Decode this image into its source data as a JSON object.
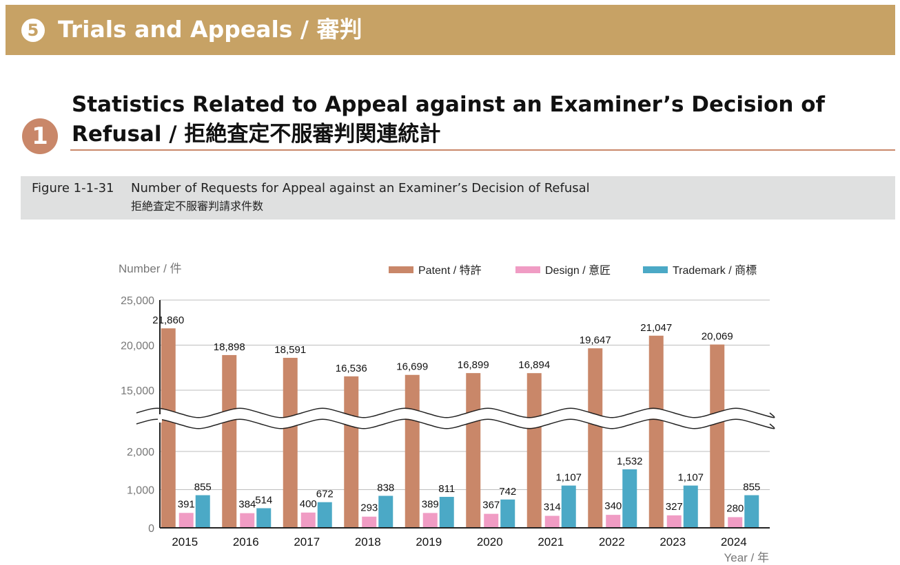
{
  "banner": {
    "number": "5",
    "title": "Trials and Appeals / 審判"
  },
  "section": {
    "number": "1",
    "title": "Statistics Related to Appeal against an Examiner’s Decision of Refusal / 拒絶査定不服審判関連統計"
  },
  "figure": {
    "label": "Figure 1-1-31",
    "title": "Number of Requests for Appeal against an Examiner’s Decision of Refusal",
    "subtitle": "拒絶査定不服審判請求件数"
  },
  "colors": {
    "banner": "#c7a265",
    "section_accent": "#c98769",
    "patent": "#c98769",
    "design": "#f09cc4",
    "trademark": "#4ba9c6"
  },
  "chart_data": {
    "type": "bar",
    "ylabel": "Number / 件",
    "xlabel": "Year / 年",
    "categories": [
      "2015",
      "2016",
      "2017",
      "2018",
      "2019",
      "2020",
      "2021",
      "2022",
      "2023",
      "2024"
    ],
    "series": [
      {
        "name": "Patent / 特許",
        "values": [
          21860,
          18898,
          18591,
          16536,
          16699,
          16899,
          16894,
          19647,
          21047,
          20069
        ]
      },
      {
        "name": "Design / 意匠",
        "values": [
          391,
          384,
          400,
          293,
          389,
          367,
          314,
          340,
          327,
          280
        ]
      },
      {
        "name": "Trademark / 商標",
        "values": [
          855,
          514,
          672,
          838,
          811,
          742,
          1107,
          1532,
          1107,
          855
        ]
      }
    ],
    "y_ticks_lower": [
      "0",
      "1,000",
      "2,000"
    ],
    "y_ticks_upper": [
      "15,000",
      "20,000",
      "25,000"
    ],
    "ylim": [
      0,
      25000
    ],
    "axis_break": "between 2,000 and 15,000",
    "legend_position": "top-right",
    "grid": true
  }
}
